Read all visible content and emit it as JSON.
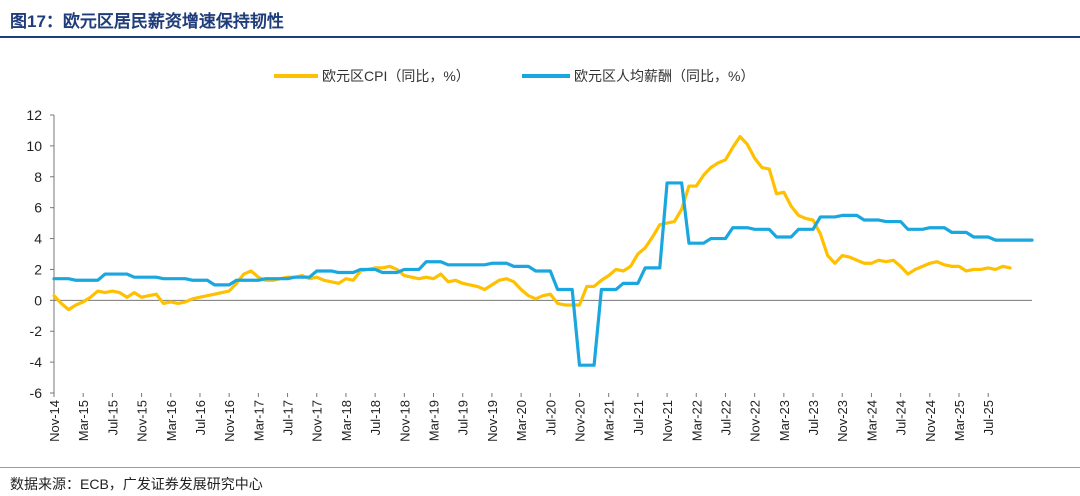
{
  "figure": {
    "title": "图17：欧元区居民薪资增速保持韧性",
    "source": "数据来源：ECB，广发证券发展研究中心"
  },
  "colors": {
    "title": "#1f3d7a",
    "cpi": "#FFC000",
    "wage": "#1AA7E0"
  },
  "chart_data": {
    "type": "line",
    "title": "图17：欧元区居民薪资增速保持韧性",
    "xlabel": "",
    "ylabel": "",
    "ylim": [
      -6,
      12
    ],
    "yticks": [
      -6,
      -4,
      -2,
      0,
      2,
      4,
      6,
      8,
      10,
      12
    ],
    "grid": false,
    "legend_position": "top-center",
    "x_start": "Nov-14",
    "x_end": "Oct-25",
    "xtick_labels": [
      "Nov-14",
      "Mar-15",
      "Jul-15",
      "Nov-15",
      "Mar-16",
      "Jul-16",
      "Nov-16",
      "Mar-17",
      "Jul-17",
      "Nov-17",
      "Mar-18",
      "Jul-18",
      "Nov-18",
      "Mar-19",
      "Jul-19",
      "Nov-19",
      "Mar-20",
      "Jul-20",
      "Nov-20",
      "Mar-21",
      "Jul-21",
      "Nov-21",
      "Mar-22",
      "Jul-22",
      "Nov-22",
      "Mar-23",
      "Jul-23",
      "Nov-23",
      "Mar-24",
      "Jul-24",
      "Nov-24",
      "Mar-25",
      "Jul-25"
    ],
    "series": [
      {
        "name": "欧元区CPI（同比，%）",
        "start": "Nov-14",
        "values": [
          0.3,
          -0.2,
          -0.6,
          -0.3,
          -0.1,
          0.2,
          0.6,
          0.5,
          0.6,
          0.5,
          0.2,
          0.5,
          0.2,
          0.3,
          0.4,
          -0.2,
          -0.1,
          -0.2,
          -0.1,
          0.1,
          0.2,
          0.3,
          0.4,
          0.5,
          0.6,
          1.1,
          1.7,
          1.9,
          1.5,
          1.3,
          1.3,
          1.4,
          1.5,
          1.5,
          1.6,
          1.4,
          1.5,
          1.3,
          1.2,
          1.1,
          1.4,
          1.3,
          1.9,
          2.0,
          2.1,
          2.1,
          2.2,
          2.0,
          1.6,
          1.5,
          1.4,
          1.5,
          1.4,
          1.7,
          1.2,
          1.3,
          1.1,
          1.0,
          0.9,
          0.7,
          1.0,
          1.3,
          1.4,
          1.2,
          0.7,
          0.3,
          0.1,
          0.3,
          0.4,
          -0.2,
          -0.3,
          -0.3,
          -0.3,
          0.9,
          0.9,
          1.3,
          1.6,
          2.0,
          1.9,
          2.2,
          3.0,
          3.4,
          4.1,
          4.9,
          5.0,
          5.1,
          5.9,
          7.4,
          7.4,
          8.1,
          8.6,
          8.9,
          9.1,
          9.9,
          10.6,
          10.1,
          9.2,
          8.6,
          8.5,
          6.9,
          7.0,
          6.1,
          5.5,
          5.3,
          5.2,
          4.3,
          2.9,
          2.4,
          2.9,
          2.8,
          2.6,
          2.4,
          2.4,
          2.6,
          2.5,
          2.6,
          2.2,
          1.7,
          2.0,
          2.2,
          2.4,
          2.5,
          2.3,
          2.2,
          2.2,
          1.9,
          2.0,
          2.0,
          2.1,
          2.0,
          2.2,
          2.1
        ]
      },
      {
        "name": "欧元区人均薪酬（同比，%）",
        "start": "Nov-14",
        "values": [
          1.4,
          1.4,
          1.4,
          1.3,
          1.3,
          1.3,
          1.3,
          1.7,
          1.7,
          1.7,
          1.7,
          1.5,
          1.5,
          1.5,
          1.5,
          1.4,
          1.4,
          1.4,
          1.4,
          1.3,
          1.3,
          1.3,
          1.0,
          1.0,
          1.0,
          1.3,
          1.3,
          1.3,
          1.3,
          1.4,
          1.4,
          1.4,
          1.4,
          1.5,
          1.5,
          1.5,
          1.9,
          1.9,
          1.9,
          1.8,
          1.8,
          1.8,
          2.0,
          2.0,
          2.0,
          1.8,
          1.8,
          1.8,
          2.0,
          2.0,
          2.0,
          2.5,
          2.5,
          2.5,
          2.3,
          2.3,
          2.3,
          2.3,
          2.3,
          2.3,
          2.4,
          2.4,
          2.4,
          2.2,
          2.2,
          2.2,
          1.9,
          1.9,
          1.9,
          0.7,
          0.7,
          0.7,
          -4.2,
          -4.2,
          -4.2,
          0.7,
          0.7,
          0.7,
          1.1,
          1.1,
          1.1,
          2.1,
          2.1,
          2.1,
          7.6,
          7.6,
          7.6,
          3.7,
          3.7,
          3.7,
          4.0,
          4.0,
          4.0,
          4.7,
          4.7,
          4.7,
          4.6,
          4.6,
          4.6,
          4.1,
          4.1,
          4.1,
          4.6,
          4.6,
          4.6,
          5.4,
          5.4,
          5.4,
          5.5,
          5.5,
          5.5,
          5.2,
          5.2,
          5.2,
          5.1,
          5.1,
          5.1,
          4.6,
          4.6,
          4.6,
          4.7,
          4.7,
          4.7,
          4.4,
          4.4,
          4.4,
          4.1,
          4.1,
          4.1,
          3.9,
          3.9,
          3.9,
          3.9,
          3.9,
          3.9
        ]
      }
    ]
  }
}
